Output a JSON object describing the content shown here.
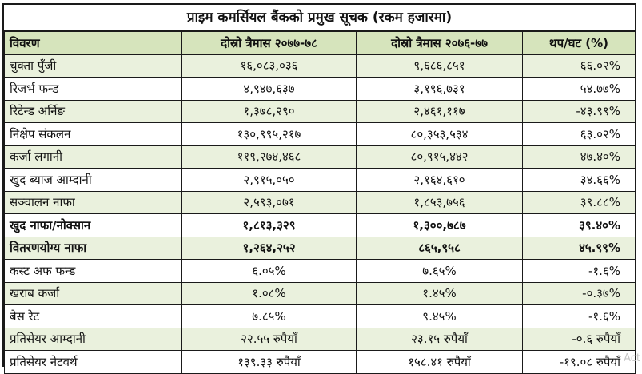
{
  "title": "प्राइम कमर्सियल बैंकको प्रमुख सूचक (रकम हजारमा)",
  "headers": [
    "विवरण",
    "दोस्रो त्रैमास २०७७-७८",
    "दोस्रो त्रैमास २०७६-७७",
    "थप/घट (%)"
  ],
  "rows": [
    {
      "label": "चुक्ता पुँजी",
      "q77": "१६,०८३,०३६",
      "q76": "९,६८६,८५१",
      "change": "६६.०२%",
      "bold": false
    },
    {
      "label": "रिजर्भ फन्ड",
      "q77": "४,९४७,६३७",
      "q76": "३,१९६,७३१",
      "change": "५४.७७%",
      "bold": false
    },
    {
      "label": "रिटेन्ड अर्निङ",
      "q77": "१,३७८,२९०",
      "q76": "२,४६१,११७",
      "change": "-४३.९९%",
      "bold": false
    },
    {
      "label": "निक्षेप संकलन",
      "q77": "१३०,९९५,२१७",
      "q76": "८०,३५३,५३४",
      "change": "६३.०२%",
      "bold": false
    },
    {
      "label": "कर्जा लगानी",
      "q77": "११९,२७४,४६८",
      "q76": "८०,९१५,४४२",
      "change": "४७.४०%",
      "bold": false
    },
    {
      "label": "खुद ब्याज आम्दानी",
      "q77": "२,९१५,०५०",
      "q76": "२,१६४,६१०",
      "change": "३४.६६%",
      "bold": false
    },
    {
      "label": "सञ्चालन नाफा",
      "q77": "२,५९३,०७१",
      "q76": "१,८५३,७५६",
      "change": "३९.८८%",
      "bold": false
    },
    {
      "label": "खुद नाफा/नोक्सान",
      "q77": "१,८१३,३२९",
      "q76": "१,३००,७८७",
      "change": "३९.४०%",
      "bold": true
    },
    {
      "label": "वितरणयोग्य नाफा",
      "q77": "१,२६४,२५२",
      "q76": "८६५,९५८",
      "change": "४५.९९%",
      "bold": true
    },
    {
      "label": "कस्ट अफ फन्ड",
      "q77": "६.०५%",
      "q76": "७.६५%",
      "change": "-१.६%",
      "bold": false
    },
    {
      "label": "खराब कर्जा",
      "q77": "१.०८%",
      "q76": "१.४५%",
      "change": "-०.३७%",
      "bold": false
    },
    {
      "label": "बेस रेट",
      "q77": "७.८५%",
      "q76": "९.४५%",
      "change": "-१.६%",
      "bold": false
    },
    {
      "label": "प्रतिसेयर आम्दानी",
      "q77": "२२.५५ रुपैयाँ",
      "q76": "२३.१५ रुपैयाँ",
      "change": "-०.६ रुपैयाँ",
      "bold": false
    },
    {
      "label": "प्रतिसेयर नेटवर्थ",
      "q77": "१३९.३३ रुपैयाँ",
      "q76": "१५८.४१ रुपैयाँ",
      "change": "-१९.०८ रुपैयाँ",
      "bold": false
    }
  ],
  "watermark": "Act"
}
